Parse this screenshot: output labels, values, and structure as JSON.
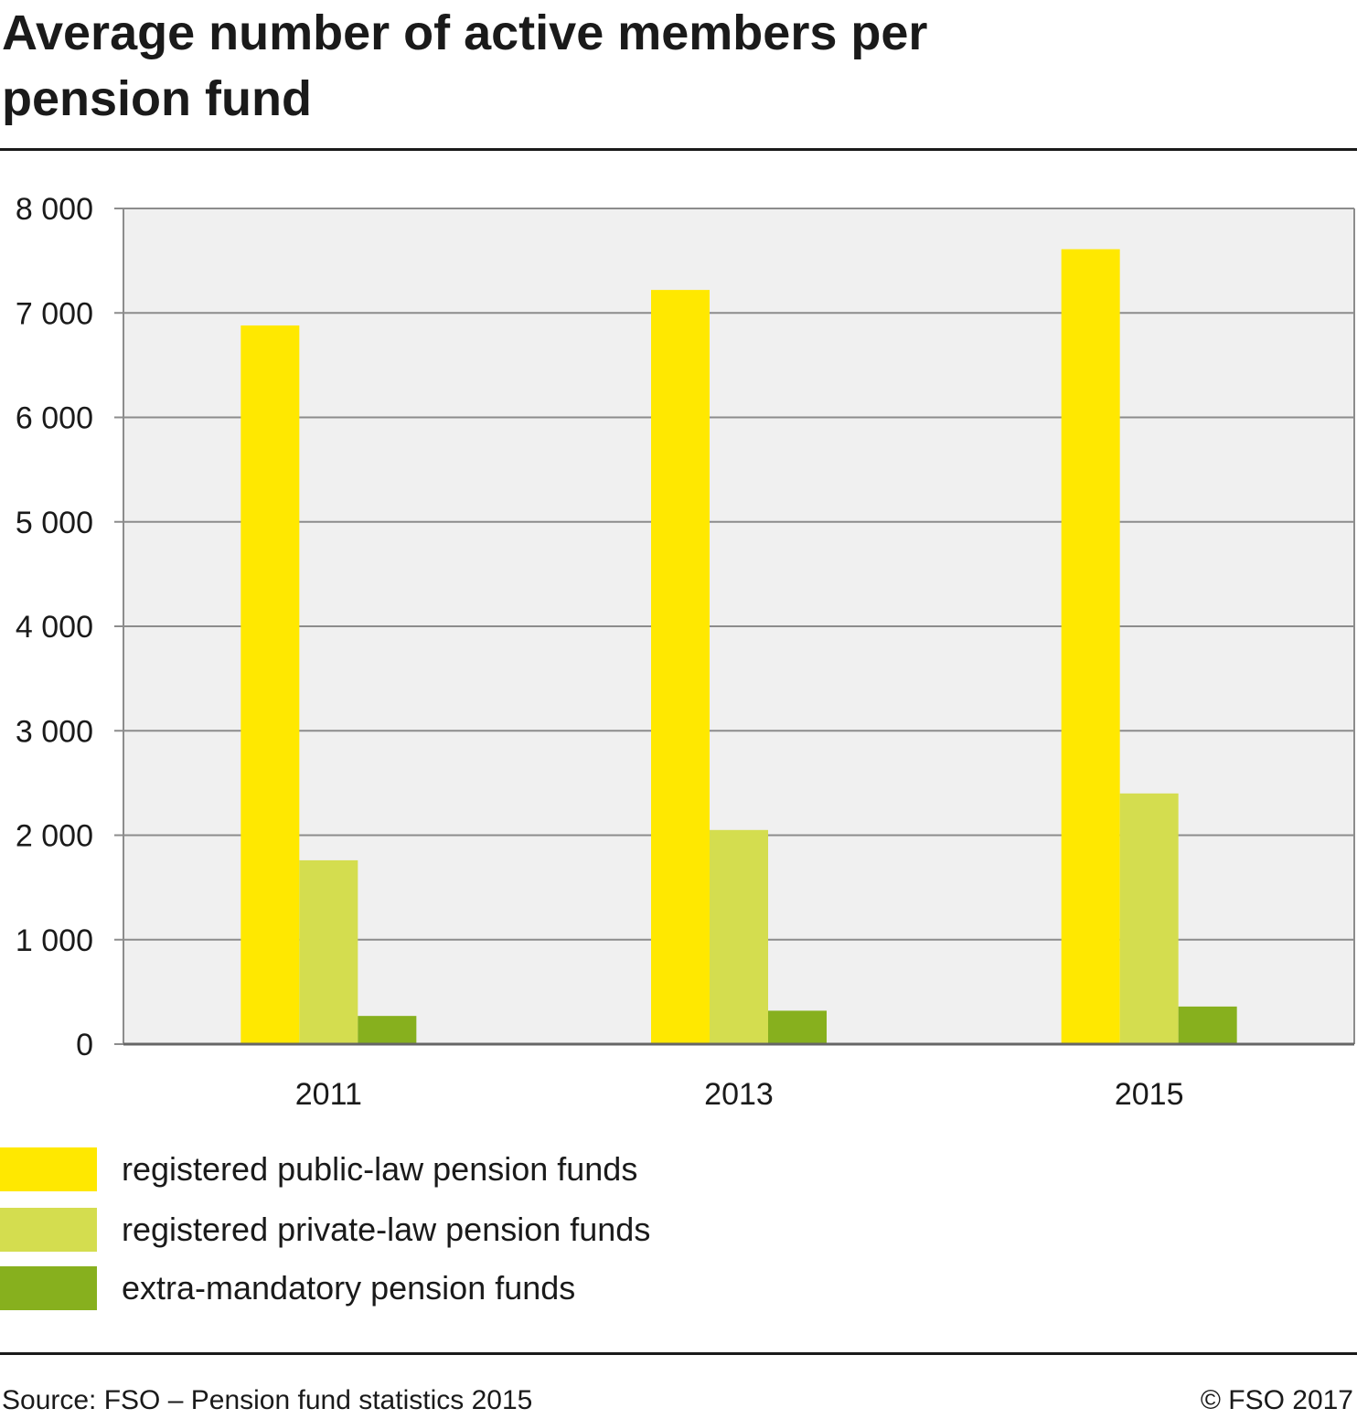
{
  "chart_data": {
    "type": "bar",
    "title": "Average number of active members per pension fund",
    "categories": [
      "2011",
      "2013",
      "2015"
    ],
    "series": [
      {
        "name": "registered public-law pension funds",
        "color": "#ffe800",
        "values": [
          6880,
          7220,
          7610
        ]
      },
      {
        "name": "registered private-law pension funds",
        "color": "#d4dd4f",
        "values": [
          1760,
          2050,
          2400
        ]
      },
      {
        "name": "extra-mandatory pension funds",
        "color": "#87b01e",
        "values": [
          270,
          320,
          360
        ]
      }
    ],
    "ylim": [
      0,
      8000
    ],
    "yticks": [
      0,
      1000,
      2000,
      3000,
      4000,
      5000,
      6000,
      7000,
      8000
    ],
    "ytick_labels": [
      "0",
      "1 000",
      "2 000",
      "3 000",
      "4 000",
      "5 000",
      "6 000",
      "7 000",
      "8 000"
    ],
    "grid": true,
    "legend_position": "bottom"
  },
  "footer": {
    "source": "Source: FSO – Pension fund statistics 2015",
    "copyright": "© FSO 2017"
  }
}
